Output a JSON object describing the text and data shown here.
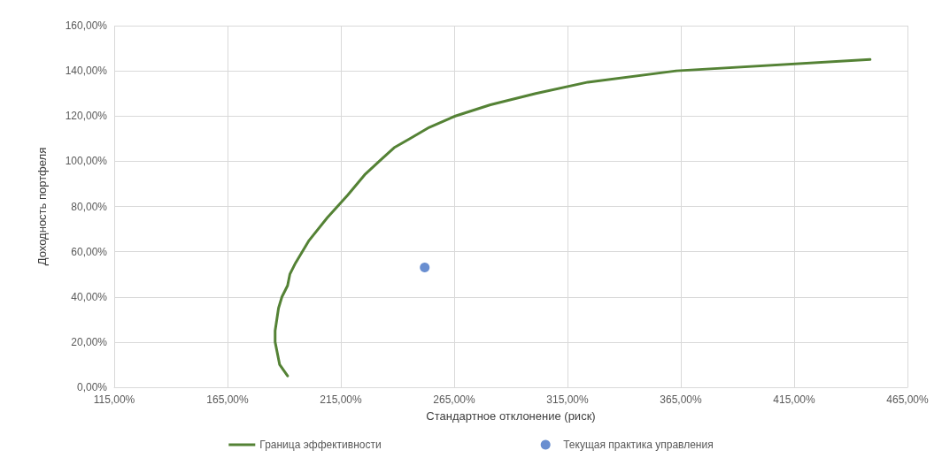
{
  "chart_data": {
    "type": "line",
    "xlabel": "Стандартное отклонение (риск)",
    "ylabel": "Доходность портфеля",
    "xlim": [
      115,
      465
    ],
    "ylim": [
      0,
      160
    ],
    "xticks": [
      {
        "value": 115,
        "label": "115,00%"
      },
      {
        "value": 165,
        "label": "165,00%"
      },
      {
        "value": 215,
        "label": "215,00%"
      },
      {
        "value": 265,
        "label": "265,00%"
      },
      {
        "value": 315,
        "label": "315,00%"
      },
      {
        "value": 365,
        "label": "365,00%"
      },
      {
        "value": 415,
        "label": "415,00%"
      },
      {
        "value": 465,
        "label": "465,00%"
      }
    ],
    "yticks": [
      {
        "value": 0,
        "label": "0,00%"
      },
      {
        "value": 20,
        "label": "20,00%"
      },
      {
        "value": 40,
        "label": "40,00%"
      },
      {
        "value": 60,
        "label": "60,00%"
      },
      {
        "value": 80,
        "label": "80,00%"
      },
      {
        "value": 100,
        "label": "100,00%"
      },
      {
        "value": 120,
        "label": "120,00%"
      },
      {
        "value": 140,
        "label": "140,00%"
      },
      {
        "value": 160,
        "label": "160,00%"
      }
    ],
    "grid": true,
    "legend": "bottom",
    "series": [
      {
        "name": "Граница эффективности",
        "marker": "none",
        "color": "#548235",
        "x": [
          191.5,
          188,
          186,
          186,
          187.5,
          189,
          191.5,
          192.5,
          195,
          201,
          209,
          218,
          225.5,
          233,
          238.5,
          245.5,
          254,
          265.5,
          281,
          301,
          324,
          363,
          448.5
        ],
        "values": [
          5,
          10,
          20,
          25,
          35,
          40,
          45,
          50,
          55,
          65,
          75,
          85,
          94,
          101,
          106,
          110,
          115,
          120,
          125,
          130,
          135,
          140,
          145
        ]
      },
      {
        "name": "Текущая практика управления",
        "type": "scatter",
        "marker": "circle",
        "color": "#4472c4",
        "x": [
          252
        ],
        "values": [
          53
        ]
      }
    ]
  }
}
